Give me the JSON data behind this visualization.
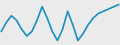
{
  "x": [
    0,
    1,
    2,
    3,
    4,
    5,
    6,
    7,
    8,
    9,
    10,
    11,
    12,
    13,
    14,
    15,
    16,
    17,
    18,
    19,
    20,
    21,
    22,
    23
  ],
  "y": [
    0.3,
    0.5,
    0.65,
    0.55,
    0.35,
    0.2,
    0.3,
    0.55,
    0.85,
    0.6,
    0.3,
    0.1,
    0.35,
    0.75,
    0.45,
    0.1,
    0.25,
    0.45,
    0.6,
    0.7,
    0.75,
    0.8,
    0.85,
    0.9
  ],
  "line_color": "#1a8fc1",
  "line_width": 1.2,
  "background_color": "#ebebeb"
}
